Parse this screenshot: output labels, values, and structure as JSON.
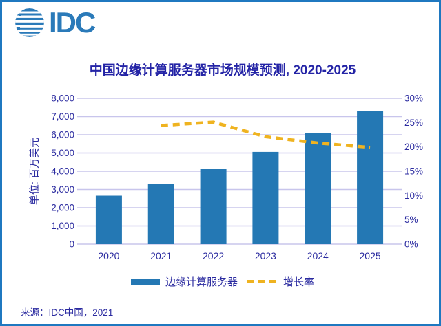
{
  "logo": {
    "text": "IDC"
  },
  "chart": {
    "title": "中国边缘计算服务器市场规模预测, 2020-2025",
    "y_axis_title": "单位: 百万美元",
    "legend": {
      "items": [
        {
          "label": "边缘计算服务器",
          "marker": "bar"
        },
        {
          "label": "增长率",
          "marker": "dashed-line"
        }
      ]
    },
    "source": "来源：IDC中国，2021"
  },
  "colors": {
    "frame_border": "#1f78c0",
    "logo_blue": "#2a7ab9",
    "bar": "#2478b4",
    "line": "#efb320",
    "grid": "#c8c5ec",
    "text_navy": "#2b2ba0",
    "title_navy": "#2424a6"
  },
  "chart_data": {
    "type": "bar+line",
    "title": "中国边缘计算服务器市场规模预测, 2020-2025",
    "categories": [
      "2020",
      "2021",
      "2022",
      "2023",
      "2024",
      "2025"
    ],
    "series": [
      {
        "name": "边缘计算服务器",
        "type": "bar",
        "axis": "left",
        "unit": "百万美元",
        "values": [
          2660,
          3310,
          4140,
          5060,
          6110,
          7300
        ]
      },
      {
        "name": "增长率",
        "type": "line",
        "axis": "right",
        "unit": "%",
        "values": [
          null,
          24.4,
          25.1,
          22.1,
          20.8,
          19.9
        ]
      }
    ],
    "left_axis": {
      "title": "单位: 百万美元",
      "min": 0,
      "max": 8000,
      "step": 1000,
      "tick_labels": [
        "0",
        "1,000",
        "2,000",
        "3,000",
        "4,000",
        "5,000",
        "6,000",
        "7,000",
        "8,000"
      ]
    },
    "right_axis": {
      "min": 0,
      "max": 30,
      "step": 5,
      "tick_labels": [
        "0%",
        "5%",
        "10%",
        "15%",
        "20%",
        "25%",
        "30%"
      ]
    },
    "grid": true,
    "legend_position": "bottom"
  }
}
